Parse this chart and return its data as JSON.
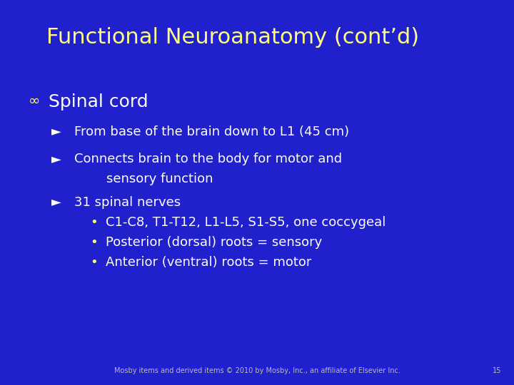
{
  "background_color": "#2020cc",
  "title": "Functional Neuroanatomy (cont’d)",
  "title_color": "#ffff88",
  "title_fontsize": 22,
  "title_fontstyle": "normal",
  "title_fontweight": "normal",
  "section_bullet": "∞",
  "section_text": "Spinal cord",
  "section_text_color": "#ffffff",
  "section_bullet_color": "#ffff88",
  "section_fontsize": 18,
  "arrow_bullet": "►",
  "arrow_color": "#ffffff",
  "body_color": "#ffffff",
  "body_fontsize": 13,
  "sub_bullet": "•",
  "sub_bullet_color": "#ffff88",
  "footer_text": "Mosby items and derived items © 2010 by Mosby, Inc., an affiliate of Elsevier Inc.",
  "footer_page": "15",
  "footer_color": "#bbbbbb",
  "footer_fontsize": 7,
  "items": [
    {
      "indent": 1,
      "text": "From base of the brain down to L1 (45 cm)"
    },
    {
      "indent": 1,
      "text": "Connects brain to the body for motor and"
    },
    {
      "indent": 1,
      "text": "    sensory function",
      "no_bullet": true
    },
    {
      "indent": 1,
      "text": "31 spinal nerves"
    },
    {
      "indent": 2,
      "text": "C1-C8, T1-T12, L1-L5, S1-S5, one coccygeal"
    },
    {
      "indent": 2,
      "text": "Posterior (dorsal) roots = sensory"
    },
    {
      "indent": 2,
      "text": "Anterior (ventral) roots = motor"
    }
  ]
}
